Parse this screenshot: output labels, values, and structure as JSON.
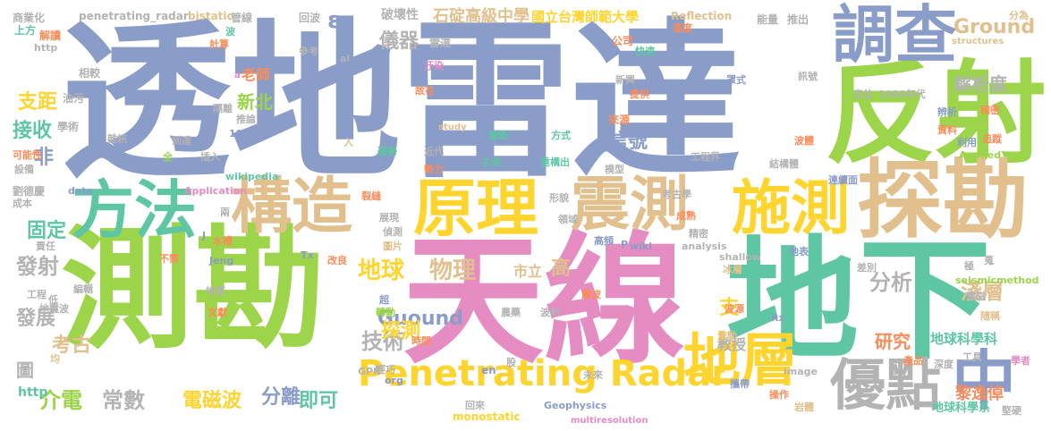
{
  "colors": {
    "blue": "#8a9cc8",
    "green": "#9cd44a",
    "teal": "#5fc6a4",
    "pink": "#e58cc3",
    "tan": "#e2c08e",
    "yellow": "#ffd42e",
    "orange": "#fb8c5a",
    "gray": "#b3b3b3"
  },
  "words": [
    "透地雷達",
    "天線",
    "測勘",
    "地下",
    "反射",
    "探勘",
    "方法",
    "構造",
    "原理",
    "震測",
    "施測",
    "調查",
    "地層",
    "優點",
    "中",
    "Penetrating Radar",
    "Ground",
    "Guound",
    "地球",
    "物理",
    "技術",
    "分析",
    "淺層",
    "發射",
    "支距",
    "接收",
    "非",
    "新北",
    "固定",
    "介電",
    "常數",
    "電磁波",
    "分離",
    "即可",
    "儀器",
    "解析度",
    "信號",
    "研究",
    "地球科學科",
    "黎逸倬",
    "地球科學系",
    "考古",
    "發展",
    "石碇高級中學",
    "國立台灣師範大學",
    "老師",
    "市立",
    "高",
    "探測",
    "教授",
    "支",
    "ε",
    "圖",
    "http",
    "商業化",
    "上方",
    "解讀",
    "penetrating_radar",
    "bistatic",
    "管線",
    "回波",
    "破壞性",
    "雷達",
    "公司",
    "Reflection",
    "速度",
    "推出",
    "能量",
    "分為",
    "structures",
    "Applied",
    "相較",
    "油污",
    "學術",
    "雜訊",
    "可能性",
    "設備",
    "劉德慶",
    "成本",
    "責任",
    "工程",
    "地震波",
    "均",
    "低",
    "編輯",
    "地質",
    "文獻",
    "超",
    "轉動",
    "時間",
    "GPR",
    "輕巧",
    "en",
    "org",
    "回來",
    "Geophysics",
    "monostatic",
    "multiresolution",
    "股",
    "未來",
    "image",
    "攜帶",
    "操作",
    "岩體",
    "堅硬",
    "工具",
    "學者",
    "深度",
    "產品",
    "地表",
    "差別",
    "極",
    "電磁",
    "隨稱",
    "seismicmethod",
    "Rx",
    "Tx",
    "shallow",
    "冰層",
    "波源",
    "波動",
    "analysis",
    "wiki",
    "高頻",
    "領域",
    "形貌",
    "精密",
    "震波",
    "農藥",
    "波射",
    "圖片",
    "偵測",
    "展現",
    "裂縫",
    "Application",
    "data",
    "wikipedia",
    "插入",
    "全",
    "到達",
    "1990年",
    "推論",
    "隔離",
    "兩",
    "水槽",
    "不需",
    "Jeng",
    "改良",
    "a",
    "al",
    "參考",
    "計算",
    "波",
    "http",
    "study",
    "入",
    "運勢",
    "近代",
    "勢力",
    "主流",
    "重構出",
    "模型",
    "建築",
    "方式",
    "水相",
    "故在",
    "新興",
    "提供",
    "汙染",
    "快速",
    "罩式",
    "訊號",
    "定位",
    "1980年代",
    "辨析",
    "稠密",
    "資料",
    "利用",
    "追蹤",
    "波體",
    "結構體",
    "工程界",
    "連續面",
    "考古學",
    "成熟",
    "P",
    "J",
    "來源",
    "蒐"
  ]
}
